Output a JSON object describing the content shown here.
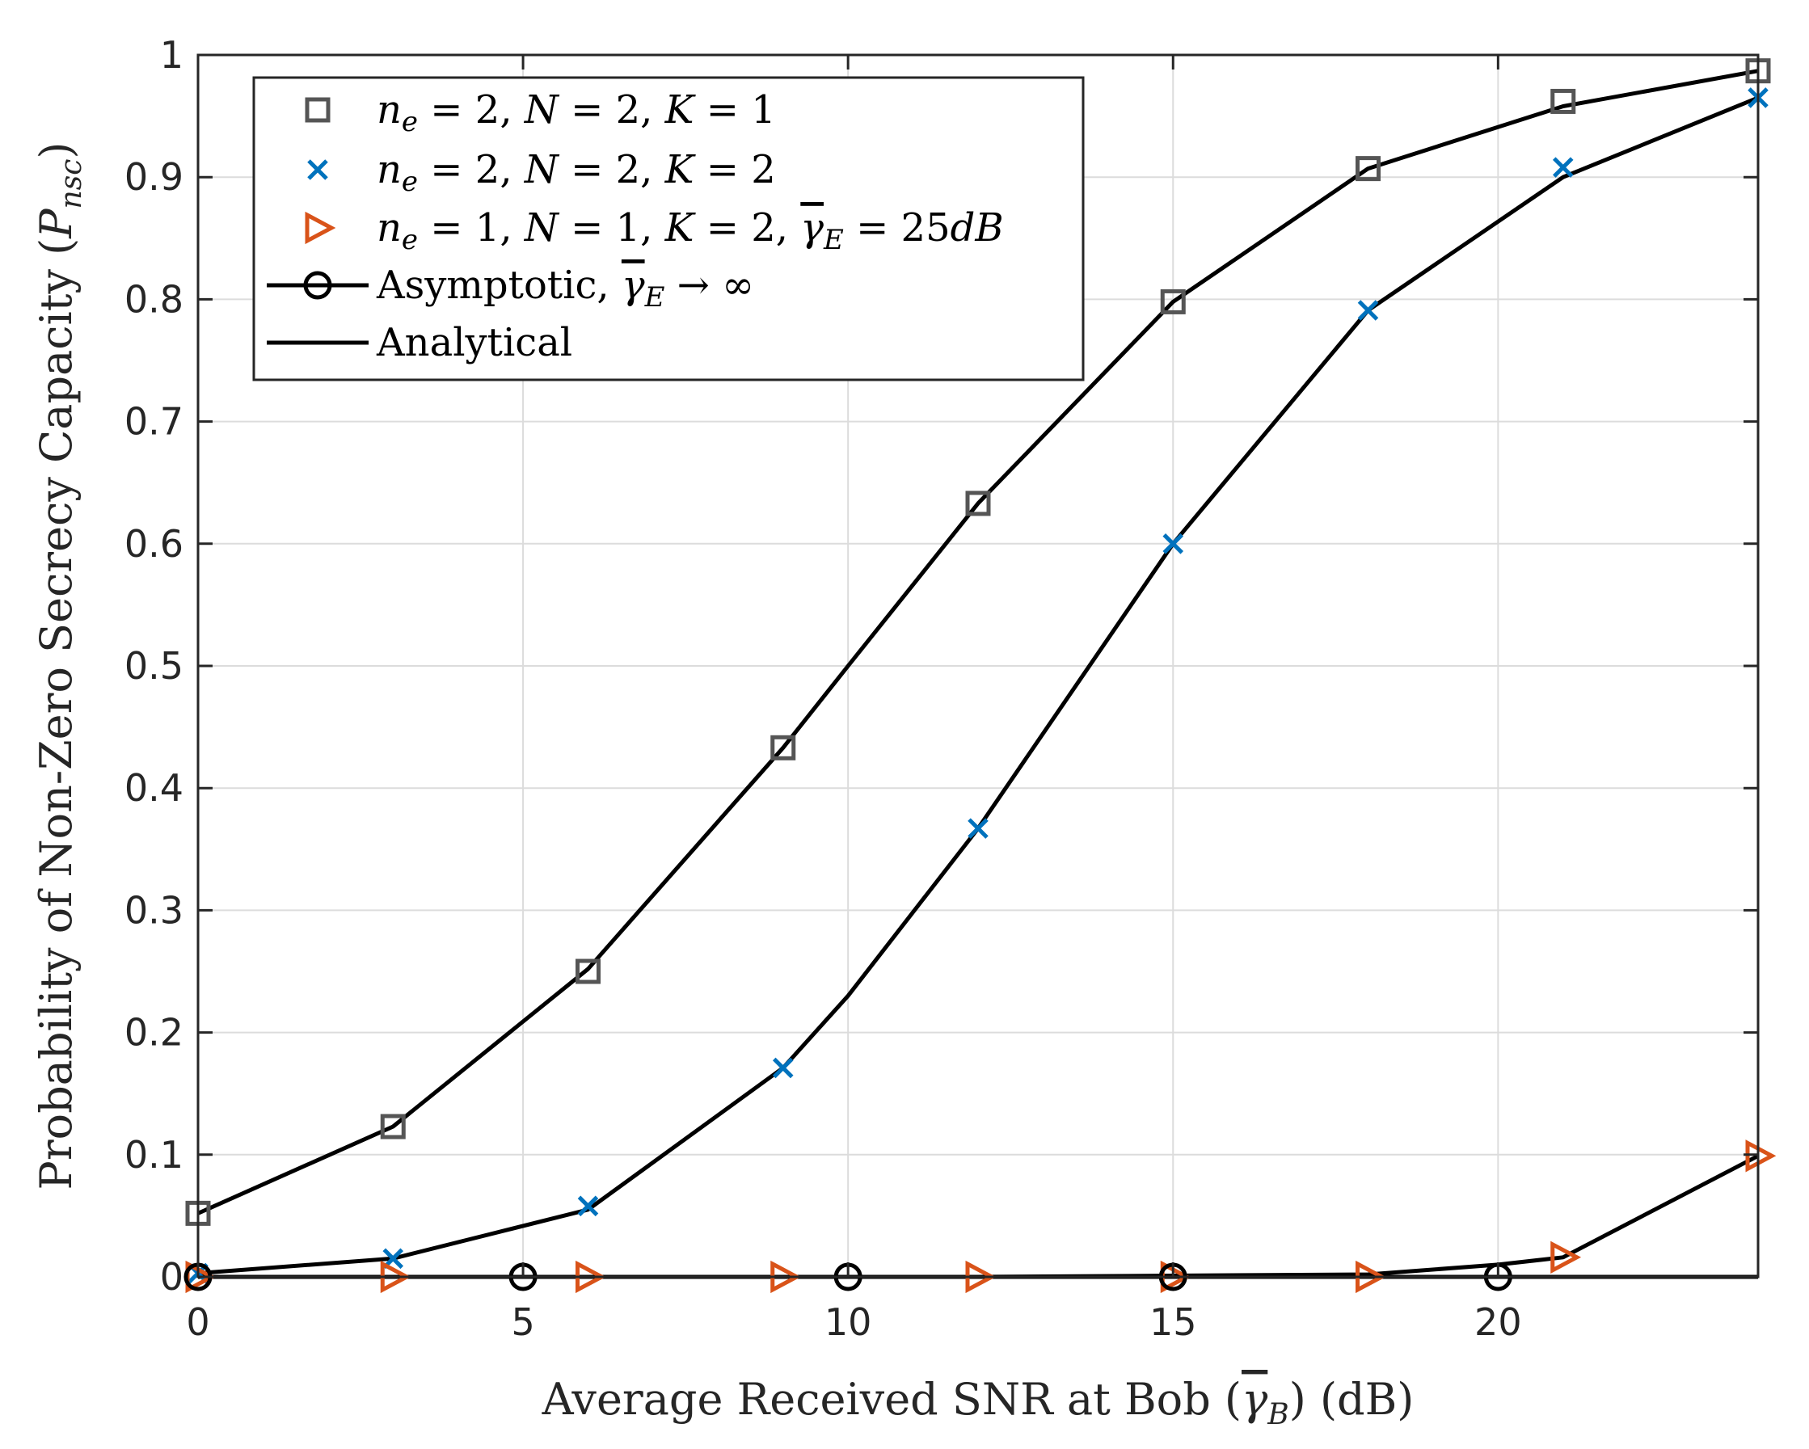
{
  "chart_data": {
    "type": "line",
    "xlabel": "Average Received SNR at Bob (γ̄_B) (dB)",
    "xlabel_parts": {
      "before": "Average Received SNR at Bob (",
      "sym": "γ",
      "sub": "B",
      "after": ") (dB)"
    },
    "ylabel": "Probability of Non-Zero Secrecy Capacity (P_nsc)",
    "ylabel_parts": {
      "before": "Probability of Non-Zero Secrecy Capacity (",
      "sym": "P",
      "sub": "nsc",
      "after": ")"
    },
    "xlim": [
      0,
      24
    ],
    "ylim": [
      0,
      1
    ],
    "xticks": [
      0,
      5,
      10,
      15,
      20
    ],
    "yticks": [
      0,
      0.1,
      0.2,
      0.3,
      0.4,
      0.5,
      0.6,
      0.7,
      0.8,
      0.9,
      1
    ],
    "xtick_labels": [
      "0",
      "5",
      "10",
      "15",
      "20"
    ],
    "ytick_labels": [
      "0",
      "0.1",
      "0.2",
      "0.3",
      "0.4",
      "0.5",
      "0.6",
      "0.7",
      "0.8",
      "0.9",
      "1"
    ],
    "grid": true,
    "legend_location": "top-left",
    "series": [
      {
        "name": "n_e = 2, N = 2, K = 1",
        "legend_parts": [
          [
            "n",
            "e",
            "= 2, "
          ],
          [
            "N",
            "",
            "= 2, "
          ],
          [
            "K",
            "",
            "= 1"
          ]
        ],
        "marker": "square",
        "color": "#555555",
        "x": [
          0,
          3,
          6,
          9,
          12,
          15,
          18,
          21,
          24
        ],
        "y": [
          0.052,
          0.123,
          0.25,
          0.433,
          0.633,
          0.798,
          0.907,
          0.962,
          0.987
        ]
      },
      {
        "name": "n_e = 2, N = 2, K = 2",
        "legend_parts": [
          [
            "n",
            "e",
            "= 2, "
          ],
          [
            "N",
            "",
            "= 2, "
          ],
          [
            "K",
            "",
            "= 2"
          ]
        ],
        "marker": "x",
        "color": "#0072BD",
        "x": [
          0,
          3,
          6,
          9,
          12,
          15,
          18,
          21,
          24
        ],
        "y": [
          0.003,
          0.015,
          0.058,
          0.171,
          0.367,
          0.6,
          0.791,
          0.908,
          0.965
        ]
      },
      {
        "name": "n_e = 1, N = 1, K = 2, γ̄_E = 25dB",
        "legend_parts": [
          [
            "n",
            "e",
            "= 1, "
          ],
          [
            "N",
            "",
            "= 1, "
          ],
          [
            "K",
            "",
            "= 2, "
          ],
          [
            "γ",
            "E",
            "= 25"
          ],
          [
            "dB",
            "",
            ""
          ]
        ],
        "marker": "triangle-right",
        "color": "#D95319",
        "x": [
          0,
          3,
          6,
          9,
          12,
          15,
          18,
          21,
          24
        ],
        "y": [
          0.0,
          0.0,
          0.0,
          0.0,
          0.0,
          0.0,
          0.0,
          0.016,
          0.099
        ]
      },
      {
        "name": "Asymptotic, γ̄_E → ∞",
        "legend_text": "Asymptotic, ",
        "legend_sym": "γ",
        "legend_sub": "E",
        "legend_tail": " → ∞",
        "marker": "circle",
        "color": "#000000",
        "x": [
          0,
          5,
          10,
          15,
          20
        ],
        "y": [
          0.0,
          0.0,
          0.0,
          0.0,
          0.0
        ]
      },
      {
        "name": "Analytical",
        "legend_text": "Analytical",
        "marker": "none",
        "color": "#000000",
        "x": [],
        "y": []
      }
    ],
    "analytical_curves": [
      {
        "name": "analytical-K1",
        "color": "#000000",
        "x": [
          0,
          3,
          6,
          9,
          10,
          12,
          15,
          18,
          21,
          24
        ],
        "y": [
          0.052,
          0.123,
          0.252,
          0.433,
          0.5,
          0.633,
          0.798,
          0.907,
          0.958,
          0.987
        ]
      },
      {
        "name": "analytical-K2",
        "color": "#000000",
        "x": [
          0,
          3,
          6,
          9,
          10,
          12,
          15,
          18,
          21,
          24
        ],
        "y": [
          0.003,
          0.015,
          0.055,
          0.171,
          0.23,
          0.367,
          0.6,
          0.791,
          0.9,
          0.965
        ]
      },
      {
        "name": "analytical-eve",
        "color": "#000000",
        "x": [
          0,
          3,
          6,
          9,
          12,
          15,
          18,
          20,
          21,
          24
        ],
        "y": [
          0.0,
          0.0,
          0.0,
          0.0,
          0.0,
          0.001,
          0.002,
          0.01,
          0.016,
          0.099
        ]
      },
      {
        "name": "analytical-asymptotic",
        "color": "#000000",
        "x": [
          0,
          24
        ],
        "y": [
          0.0,
          0.0
        ]
      }
    ]
  }
}
